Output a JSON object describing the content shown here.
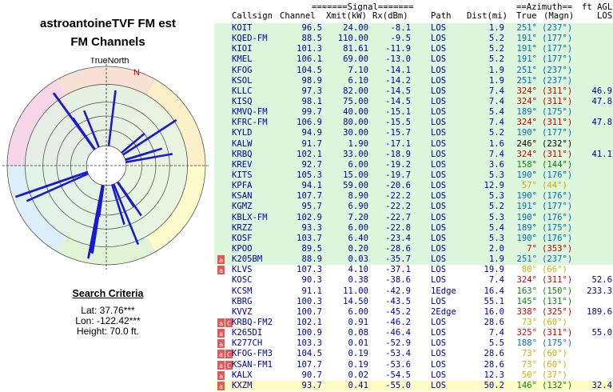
{
  "panel": {
    "title": "astroantoineTVF FM est",
    "subtitle": "FM Channels",
    "polar_label": "TrueNorth",
    "north_label": "N"
  },
  "criteria": {
    "heading": "Search Criteria",
    "lat": "Lat: 37.76***",
    "lon": "Lon: -122.42***",
    "height": "Height: 70.0 ft."
  },
  "headers": {
    "signal_group": "=======Signal=======",
    "azimuth_group": "==Azimuth==",
    "ftagl": "ft AGL",
    "callsign": "Callsign",
    "channel": "Channel",
    "xmit": "Xmit(kW)",
    "rx": "Rx(dBm)",
    "path": "Path",
    "dist": "Dist(mi)",
    "true": "True",
    "magn": "(Magn)",
    "los": "LOS"
  },
  "colors": {
    "azimuth_red": "#cc0000",
    "azimuth_blue": "#0070b8",
    "azimuth_green": "#0a8a0a",
    "azimuth_yellow": "#c8b400",
    "data_blue": "#0000a6",
    "row_green": "#dcf7dc",
    "row_yellow": "#fffcc4",
    "radial": "#1a1ad0"
  },
  "rows": [
    {
      "marks": [],
      "callsign": "KOIT",
      "channel": "96.5",
      "xmit": "24.00",
      "rx": "-8.1",
      "path": "LOS",
      "dist": "1.9",
      "true": "251°",
      "magn": "(237°)",
      "los": "",
      "azcolor": "blue",
      "bg": "a"
    },
    {
      "marks": [],
      "callsign": "KQED-FM",
      "channel": "88.5",
      "xmit": "110.00",
      "rx": "-9.5",
      "path": "LOS",
      "dist": "5.2",
      "true": "191°",
      "magn": "(177°)",
      "los": "",
      "azcolor": "blue",
      "bg": "a"
    },
    {
      "marks": [],
      "callsign": "KIOI",
      "channel": "101.3",
      "xmit": "81.61",
      "rx": "-11.9",
      "path": "LOS",
      "dist": "5.2",
      "true": "191°",
      "magn": "(177°)",
      "los": "",
      "azcolor": "blue",
      "bg": "a"
    },
    {
      "marks": [],
      "callsign": "KMEL",
      "channel": "106.1",
      "xmit": "69.00",
      "rx": "-13.0",
      "path": "LOS",
      "dist": "5.2",
      "true": "191°",
      "magn": "(177°)",
      "los": "",
      "azcolor": "blue",
      "bg": "a"
    },
    {
      "marks": [],
      "callsign": "KFOG",
      "channel": "104.5",
      "xmit": "7.10",
      "rx": "-14.1",
      "path": "LOS",
      "dist": "1.9",
      "true": "251°",
      "magn": "(237°)",
      "los": "",
      "azcolor": "blue",
      "bg": "a"
    },
    {
      "marks": [],
      "callsign": "KSOL",
      "channel": "98.9",
      "xmit": "6.10",
      "rx": "-14.2",
      "path": "LOS",
      "dist": "1.9",
      "true": "251°",
      "magn": "(237°)",
      "los": "",
      "azcolor": "blue",
      "bg": "a"
    },
    {
      "marks": [],
      "callsign": "KLLC",
      "channel": "97.3",
      "xmit": "82.00",
      "rx": "-14.5",
      "path": "LOS",
      "dist": "7.4",
      "true": "324°",
      "magn": "(311°)",
      "los": "46.9",
      "azcolor": "red",
      "bg": "a"
    },
    {
      "marks": [],
      "callsign": "KISQ",
      "channel": "98.1",
      "xmit": "75.00",
      "rx": "-14.5",
      "path": "LOS",
      "dist": "7.4",
      "true": "324°",
      "magn": "(311°)",
      "los": "47.8",
      "azcolor": "red",
      "bg": "a"
    },
    {
      "marks": [],
      "callsign": "KMVQ-FM",
      "channel": "99.7",
      "xmit": "40.00",
      "rx": "-15.1",
      "path": "LOS",
      "dist": "5.4",
      "true": "189°",
      "magn": "(175°)",
      "los": "",
      "azcolor": "blue",
      "bg": "a"
    },
    {
      "marks": [],
      "callsign": "KFRC-FM",
      "channel": "106.9",
      "xmit": "80.00",
      "rx": "-15.5",
      "path": "LOS",
      "dist": "7.4",
      "true": "324°",
      "magn": "(311°)",
      "los": "47.8",
      "azcolor": "red",
      "bg": "a"
    },
    {
      "marks": [],
      "callsign": "KYLD",
      "channel": "94.9",
      "xmit": "30.00",
      "rx": "-15.7",
      "path": "LOS",
      "dist": "5.2",
      "true": "190°",
      "magn": "(177°)",
      "los": "",
      "azcolor": "blue",
      "bg": "a"
    },
    {
      "marks": [],
      "callsign": "KALW",
      "channel": "91.7",
      "xmit": "1.90",
      "rx": "-17.1",
      "path": "LOS",
      "dist": "1.6",
      "true": "246°",
      "magn": "(232°)",
      "los": "",
      "azcolor": "dark",
      "bg": "a"
    },
    {
      "marks": [],
      "callsign": "KRBQ",
      "channel": "102.1",
      "xmit": "33.00",
      "rx": "-18.9",
      "path": "LOS",
      "dist": "7.4",
      "true": "324°",
      "magn": "(311°)",
      "los": "41.1",
      "azcolor": "red",
      "bg": "a"
    },
    {
      "marks": [],
      "callsign": "KREV",
      "channel": "92.7",
      "xmit": "6.00",
      "rx": "-19.2",
      "path": "LOS",
      "dist": "3.6",
      "true": "158°",
      "magn": "(144°)",
      "los": "",
      "azcolor": "green",
      "bg": "a"
    },
    {
      "marks": [],
      "callsign": "KITS",
      "channel": "105.3",
      "xmit": "15.00",
      "rx": "-19.7",
      "path": "LOS",
      "dist": "5.3",
      "true": "190°",
      "magn": "(176°)",
      "los": "",
      "azcolor": "blue",
      "bg": "a"
    },
    {
      "marks": [],
      "callsign": "KPFA",
      "channel": "94.1",
      "xmit": "59.00",
      "rx": "-20.6",
      "path": "LOS",
      "dist": "12.9",
      "true": "57°",
      "magn": "(44°)",
      "los": "",
      "azcolor": "yellow",
      "bg": "a"
    },
    {
      "marks": [],
      "callsign": "KSAN",
      "channel": "107.7",
      "xmit": "8.90",
      "rx": "-22.2",
      "path": "LOS",
      "dist": "5.3",
      "true": "190°",
      "magn": "(176°)",
      "los": "",
      "azcolor": "blue",
      "bg": "a"
    },
    {
      "marks": [],
      "callsign": "KGMZ",
      "channel": "95.7",
      "xmit": "6.90",
      "rx": "-22.2",
      "path": "LOS",
      "dist": "5.2",
      "true": "191°",
      "magn": "(177°)",
      "los": "",
      "azcolor": "blue",
      "bg": "a"
    },
    {
      "marks": [],
      "callsign": "KBLX-FM",
      "channel": "102.9",
      "xmit": "7.20",
      "rx": "-22.7",
      "path": "LOS",
      "dist": "5.3",
      "true": "190°",
      "magn": "(176°)",
      "los": "",
      "azcolor": "blue",
      "bg": "a"
    },
    {
      "marks": [],
      "callsign": "KRZZ",
      "channel": "93.3",
      "xmit": "6.00",
      "rx": "-22.8",
      "path": "LOS",
      "dist": "5.4",
      "true": "189°",
      "magn": "(175°)",
      "los": "",
      "azcolor": "blue",
      "bg": "a"
    },
    {
      "marks": [],
      "callsign": "KOSF",
      "channel": "103.7",
      "xmit": "6.40",
      "rx": "-23.4",
      "path": "LOS",
      "dist": "5.3",
      "true": "190°",
      "magn": "(176°)",
      "los": "",
      "azcolor": "blue",
      "bg": "a"
    },
    {
      "marks": [],
      "callsign": "KPOO",
      "channel": "89.5",
      "xmit": "0.20",
      "rx": "-28.6",
      "path": "LOS",
      "dist": "2.0",
      "true": "7°",
      "magn": "(353°)",
      "los": "",
      "azcolor": "red",
      "bg": "a"
    },
    {
      "marks": [
        "a"
      ],
      "callsign": "K205BM",
      "channel": "88.9",
      "xmit": "0.03",
      "rx": "-35.7",
      "path": "LOS",
      "dist": "1.9",
      "true": "251°",
      "magn": "(237°)",
      "los": "",
      "azcolor": "blue",
      "bg": "a"
    },
    {
      "marks": [
        "a"
      ],
      "callsign": "KLVS",
      "channel": "107.3",
      "xmit": "4.10",
      "rx": "-37.1",
      "path": "LOS",
      "dist": "19.9",
      "true": "80°",
      "magn": "(66°)",
      "los": "",
      "azcolor": "yellow",
      "bg": "b"
    },
    {
      "marks": [],
      "callsign": "KOSC",
      "channel": "90.3",
      "xmit": "0.38",
      "rx": "-38.6",
      "path": "LOS",
      "dist": "7.4",
      "true": "324°",
      "magn": "(311°)",
      "los": "52.6",
      "azcolor": "red",
      "bg": "b"
    },
    {
      "marks": [],
      "callsign": "KCSM",
      "channel": "91.1",
      "xmit": "11.00",
      "rx": "-42.9",
      "path": "1Edge",
      "dist": "16.4",
      "true": "163°",
      "magn": "(150°)",
      "los": "233.3",
      "azcolor": "green",
      "bg": "b"
    },
    {
      "marks": [],
      "callsign": "KBRG",
      "channel": "100.3",
      "xmit": "14.50",
      "rx": "-43.5",
      "path": "LOS",
      "dist": "55.1",
      "true": "145°",
      "magn": "(131°)",
      "los": "",
      "azcolor": "green",
      "bg": "b"
    },
    {
      "marks": [],
      "callsign": "KVVZ",
      "channel": "100.7",
      "xmit": "6.00",
      "rx": "-45.2",
      "path": "2Edge",
      "dist": "16.0",
      "true": "338°",
      "magn": "(325°)",
      "los": "189.6",
      "azcolor": "red",
      "bg": "b"
    },
    {
      "marks": [
        "a",
        "C"
      ],
      "callsign": "KRBQ-FM2",
      "channel": "102.1",
      "xmit": "0.91",
      "rx": "-46.2",
      "path": "LOS",
      "dist": "28.6",
      "true": "73°",
      "magn": "(60°)",
      "los": "",
      "azcolor": "yellow",
      "bg": "b"
    },
    {
      "marks": [
        "a"
      ],
      "callsign": "K265DI",
      "channel": "100.9",
      "xmit": "0.08",
      "rx": "-46.4",
      "path": "LOS",
      "dist": "7.4",
      "true": "325°",
      "magn": "(311°)",
      "los": "55.0",
      "azcolor": "red",
      "bg": "b"
    },
    {
      "marks": [
        "a"
      ],
      "callsign": "K277CH",
      "channel": "103.3",
      "xmit": "0.01",
      "rx": "-52.9",
      "path": "LOS",
      "dist": "5.5",
      "true": "188°",
      "magn": "(175°)",
      "los": "",
      "azcolor": "blue",
      "bg": "b"
    },
    {
      "marks": [
        "a",
        "C"
      ],
      "callsign": "KFOG-FM3",
      "channel": "104.5",
      "xmit": "0.19",
      "rx": "-53.4",
      "path": "LOS",
      "dist": "28.6",
      "true": "73°",
      "magn": "(60°)",
      "los": "",
      "azcolor": "yellow",
      "bg": "b"
    },
    {
      "marks": [
        "a",
        "C"
      ],
      "callsign": "KSAN-FM1",
      "channel": "107.7",
      "xmit": "0.19",
      "rx": "-53.6",
      "path": "LOS",
      "dist": "28.6",
      "true": "73°",
      "magn": "(60°)",
      "los": "",
      "azcolor": "yellow",
      "bg": "b"
    },
    {
      "marks": [
        "a"
      ],
      "callsign": "KALX",
      "channel": "90.7",
      "xmit": "0.02",
      "rx": "-54.5",
      "path": "LOS",
      "dist": "12.3",
      "true": "50°",
      "magn": "(37°)",
      "los": "",
      "azcolor": "yellow",
      "bg": "b"
    },
    {
      "marks": [
        "a"
      ],
      "callsign": "KXZM",
      "channel": "93.7",
      "xmit": "0.41",
      "rx": "-55.0",
      "path": "LOS",
      "dist": "50.2",
      "true": "146°",
      "magn": "(132°)",
      "los": "32.4",
      "azcolor": "green",
      "bg": "y"
    }
  ]
}
